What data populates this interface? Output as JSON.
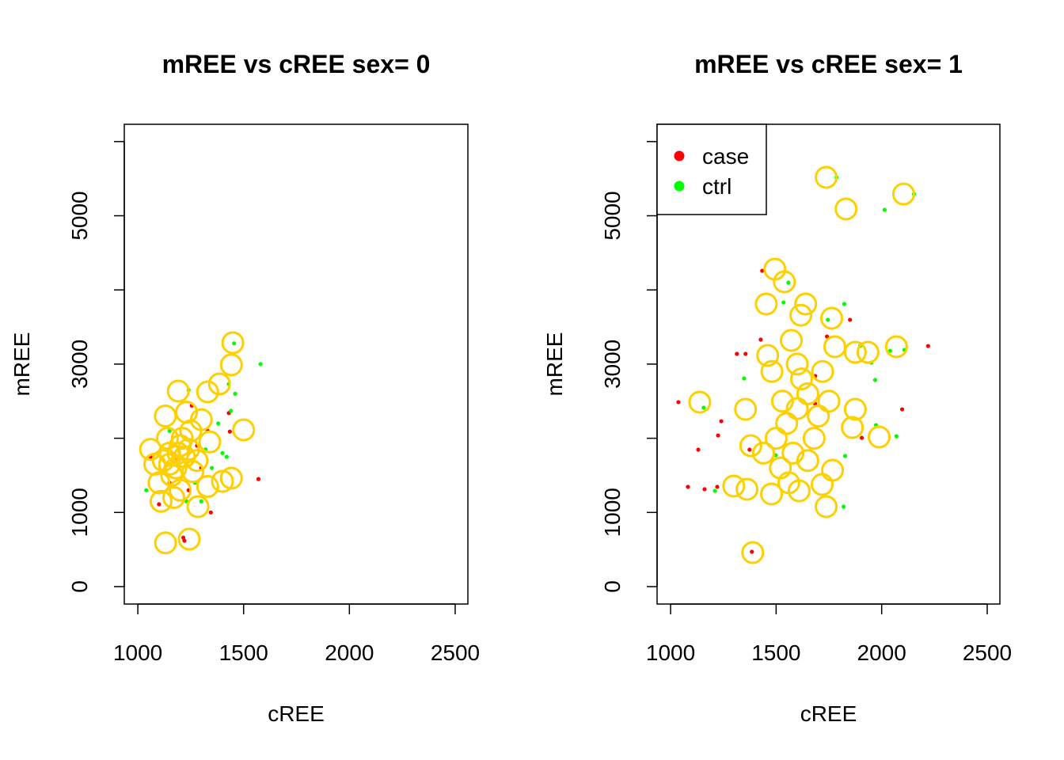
{
  "chart_data": [
    {
      "type": "scatter",
      "title": "mREE vs cREE sex= 0",
      "xlabel": "cREE",
      "ylabel": "mREE",
      "xlim": [
        936,
        2560
      ],
      "ylim": [
        -235,
        6233
      ],
      "xticks": [
        1000,
        1500,
        2000,
        2500
      ],
      "yticks": [
        0,
        1000,
        3000,
        5000
      ],
      "yticks_unlabeled": [
        2000,
        4000,
        6000
      ],
      "series": [
        {
          "color": "#ff0000",
          "x": [
            1220,
            1215,
            1570,
            1435,
            1430,
            1345,
            1255,
            1100,
            1330,
            1180,
            1280,
            1150,
            1240,
            1060,
            1300
          ],
          "y": [
            620,
            660,
            1450,
            2090,
            2340,
            1000,
            2440,
            1110,
            2100,
            1700,
            1900,
            1400,
            1300,
            1750,
            1600
          ]
        },
        {
          "color": "#00ff00",
          "x": [
            1580,
            1455,
            1460,
            1440,
            1430,
            1420,
            1040,
            1240,
            1380,
            1350,
            1300,
            1230,
            1400,
            1150,
            1270,
            1320
          ],
          "y": [
            3000,
            3280,
            2600,
            2370,
            2730,
            1750,
            1300,
            2650,
            2200,
            1600,
            1150,
            1150,
            1800,
            2100,
            1400,
            1850
          ]
        }
      ],
      "circles": {
        "color": "#ffd000",
        "x": [
          1131,
          1243,
          1449,
          1442,
          1500,
          1191,
          1386,
          1330,
          1284,
          1442,
          1400,
          1120,
          1150,
          1180,
          1200,
          1220,
          1160,
          1100,
          1080,
          1060,
          1140,
          1250,
          1300,
          1230,
          1130,
          1200,
          1170,
          1110,
          1260,
          1340,
          1280,
          1210,
          1190,
          1150,
          1330,
          1240
        ],
        "y": [
          590,
          640,
          3287,
          2990,
          2113,
          2636,
          2732,
          2625,
          1078,
          1462,
          1420,
          1700,
          1800,
          1600,
          1900,
          1750,
          1500,
          1400,
          1650,
          1850,
          2000,
          2100,
          2250,
          2350,
          2300,
          1300,
          1200,
          1150,
          1550,
          1950,
          1700,
          2000,
          1800,
          1650,
          1350,
          1850
        ]
      }
    },
    {
      "type": "scatter",
      "title": "mREE vs cREE sex= 1",
      "xlabel": "cREE",
      "ylabel": "mREE",
      "xlim": [
        936,
        2560
      ],
      "ylim": [
        -235,
        6233
      ],
      "xticks": [
        1000,
        1500,
        2000,
        2500
      ],
      "yticks": [
        0,
        1000,
        3000,
        5000
      ],
      "yticks_unlabeled": [
        2000,
        4000,
        6000
      ],
      "legend": "topleft",
      "series": [
        {
          "name": "case",
          "color": "#ff0000",
          "x": [
            2220,
            2097,
            1906,
            1850,
            1037,
            1131,
            1082,
            1161,
            1221,
            1240,
            1225,
            1314,
            1355,
            1427,
            1434,
            1385,
            1374,
            1685,
            1741,
            1685
          ],
          "y": [
            3244,
            2390,
            2006,
            3597,
            2487,
            1846,
            1345,
            1313,
            1345,
            2230,
            2038,
            3138,
            3138,
            3330,
            4258,
            470,
            1846,
            2839,
            3372,
            2465
          ]
        },
        {
          "name": "ctrl",
          "color": "#00ff00",
          "x": [
            1786,
            2014,
            2153,
            1823,
            1745,
            1558,
            1535,
            1348,
            1898,
            1969,
            1951,
            2040,
            2108,
            2070,
            1973,
            1820,
            1827,
            1210,
            1157,
            1498
          ],
          "y": [
            5518,
            5080,
            5293,
            3810,
            3597,
            4098,
            3831,
            2807,
            3244,
            2786,
            3020,
            3180,
            3191,
            2028,
            2177,
            1078,
            1761,
            1291,
            2412,
            1772
          ]
        }
      ],
      "circles": {
        "color": "#ffd000",
        "x": [
          1737,
          1831,
          2104,
          1494,
          1539,
          1453,
          1640,
          1617,
          1763,
          1572,
          1778,
          1875,
          1935,
          2070,
          1460,
          1138,
          1875,
          1988,
          1861,
          1389,
          1737,
          1718,
          1767,
          1299,
          1362,
          1478,
          1609,
          1355,
          1500,
          1550,
          1600,
          1650,
          1700,
          1580,
          1520,
          1620,
          1680,
          1750,
          1480,
          1440,
          1380,
          1560,
          1650,
          1720,
          1600,
          1530
        ],
        "y": [
          5518,
          5091,
          5293,
          4280,
          4109,
          3810,
          3810,
          3660,
          3618,
          3319,
          3234,
          3159,
          3159,
          3234,
          3116,
          2487,
          2390,
          2017,
          2145,
          459,
          1078,
          1377,
          1569,
          1355,
          1313,
          1249,
          1291,
          2390,
          2000,
          2200,
          2400,
          2600,
          2300,
          1800,
          1600,
          2800,
          2000,
          2500,
          2900,
          1800,
          1900,
          1400,
          1700,
          2900,
          3000,
          2500
        ]
      }
    }
  ]
}
